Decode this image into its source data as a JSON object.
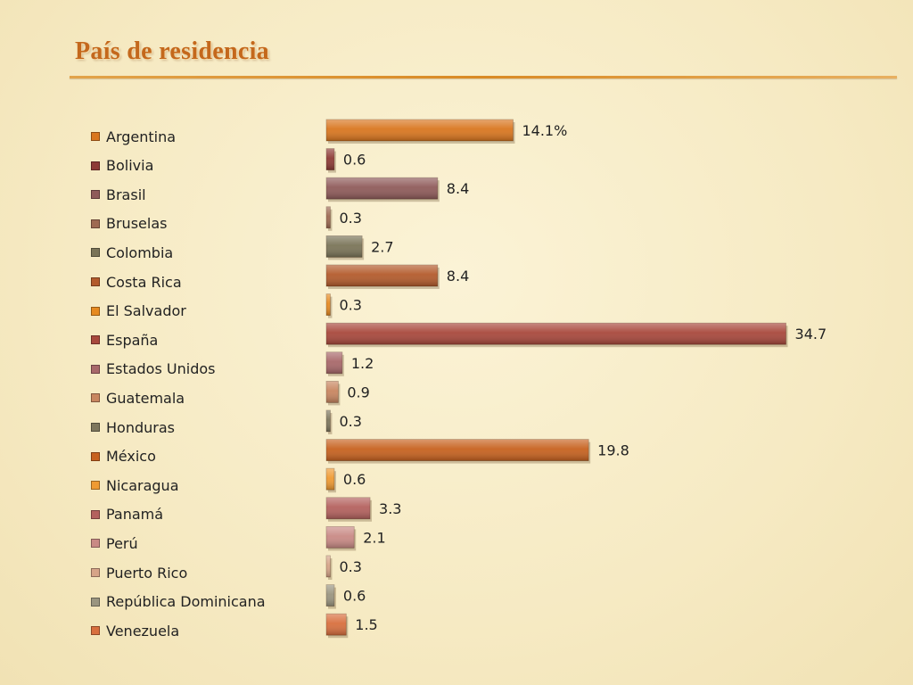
{
  "slide": {
    "title": "País de residencia"
  },
  "chart_data": {
    "type": "bar",
    "orientation": "horizontal",
    "categories": [
      "Argentina",
      "Bolivia",
      "Brasil",
      "Bruselas",
      "Colombia",
      "Costa Rica",
      "El Salvador",
      "España",
      "Estados Unidos",
      "Guatemala",
      "Honduras",
      "México",
      "Nicaragua",
      "Panamá",
      "Perú",
      "Puerto Rico",
      "República Dominicana",
      "Venezuela"
    ],
    "values": [
      14.1,
      0.6,
      8.4,
      0.3,
      2.7,
      8.4,
      0.3,
      34.7,
      1.2,
      0.9,
      0.3,
      19.8,
      0.6,
      3.3,
      2.1,
      0.3,
      0.6,
      1.5
    ],
    "value_labels": [
      "14.1%",
      "0.6",
      "8.4",
      "0.3",
      "2.7",
      "8.4",
      "0.3",
      "34.7",
      "1.2",
      "0.9",
      "0.3",
      "19.8",
      "0.6",
      "3.3",
      "2.1",
      "0.3",
      "0.6",
      "1.5"
    ],
    "colors": [
      "#d9761f",
      "#8e3b36",
      "#8f5b5a",
      "#9e6a52",
      "#7a7458",
      "#b35b2c",
      "#e68a20",
      "#a8483c",
      "#a8686a",
      "#c88660",
      "#7d765d",
      "#c7621f",
      "#ef9a32",
      "#b4615e",
      "#c98a85",
      "#d6a488",
      "#9a9580",
      "#d86f3e"
    ],
    "xlim": [
      0,
      35
    ],
    "legend": "left",
    "grid": false,
    "title": "",
    "xlabel": "",
    "ylabel": ""
  }
}
